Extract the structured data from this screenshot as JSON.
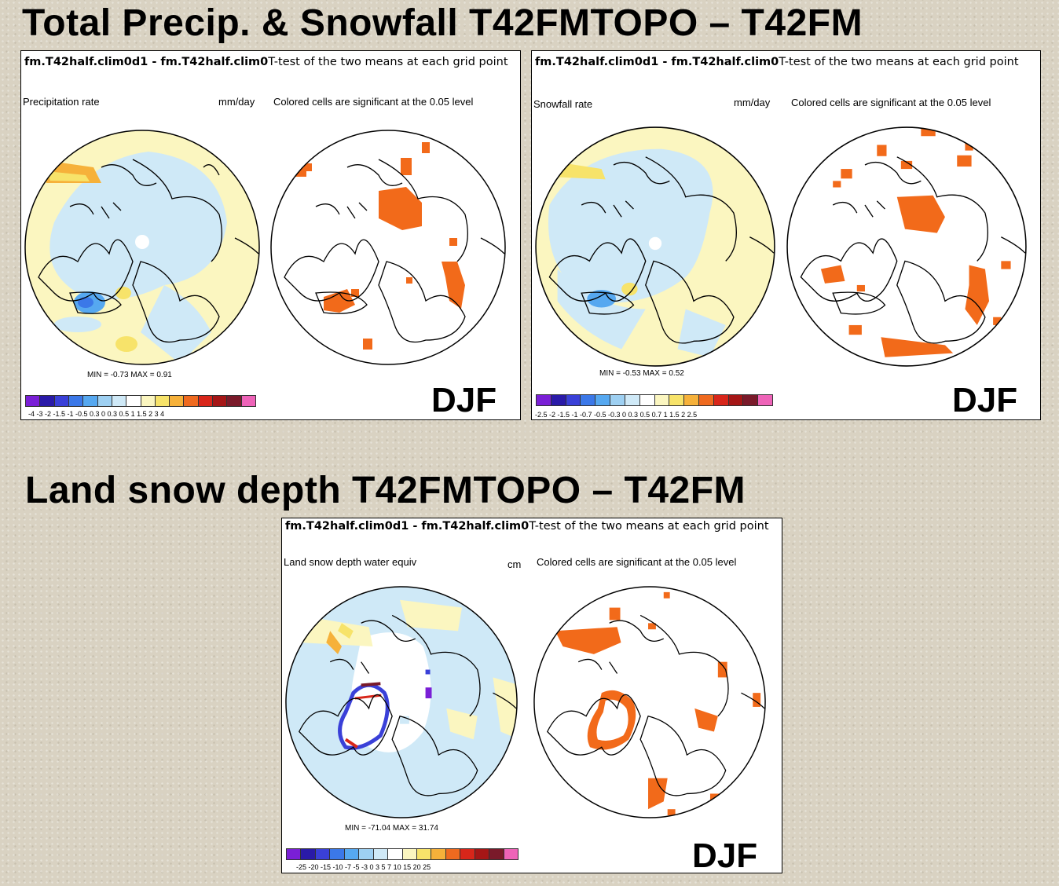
{
  "titles": {
    "top": "Total Precip. & Snowfall T42FMTOPO – T42FM",
    "bottom": "Land snow depth T42FMTOPO – T42FM"
  },
  "panels": [
    {
      "id": "precip",
      "title_left": "fm.T42half.clim0d1 - fm.T42half.clim0",
      "title_right": "T-test of the two means at each grid point",
      "variable": "Precipitation rate",
      "units": "mm/day",
      "significance": "Colored cells are significant at the 0.05 level",
      "minmax": "MIN = -0.73 MAX = 0.91",
      "season": "DJF",
      "ticks": "-4  -3  -2 -1.5 -1 -0.5 0.3  0  0.3 0.5  1  1.5  2   3   4"
    },
    {
      "id": "snowfall",
      "title_left": "fm.T42half.clim0d1 - fm.T42half.clim0",
      "title_right": "T-test of the two means at each grid point",
      "variable": "Snowfall rate",
      "units": "mm/day",
      "significance": "Colored cells are significant at the 0.05 level",
      "minmax": "MIN = -0.53 MAX = 0.52",
      "season": "DJF",
      "ticks": "-2.5 -2 -1.5 -1 -0.7 -0.5 -0.3  0  0.3 0.5 0.7  1  1.5  2  2.5"
    },
    {
      "id": "snowdepth",
      "title_left": "fm.T42half.clim0d1 - fm.T42half.clim0",
      "title_right": "T-test of the two means at each grid point",
      "variable": "Land snow depth water equiv",
      "units": "cm",
      "significance": "Colored cells are significant at the 0.05 level",
      "minmax": "MIN = -71.04 MAX = 31.74",
      "season": "DJF",
      "ticks": "-25 -20 -15 -10 -7  -5  -3   0   3   5   7  10  15  20  25"
    }
  ],
  "colorbar_colors": [
    "#7a1fd6",
    "#2a1aa8",
    "#3a40d8",
    "#3b78e8",
    "#56a8f0",
    "#9ed0f2",
    "#cfe9f7",
    "#ffffff",
    "#fbf6c0",
    "#f7e36a",
    "#f6b13a",
    "#ef6a1f",
    "#d8261a",
    "#a51616",
    "#7a1a2a",
    "#ee63b8"
  ],
  "map_colors": {
    "light_blue": "#cfe9f7",
    "mid_blue": "#9ed0f2",
    "blue": "#56a8f0",
    "light_yellow": "#fbf6c0",
    "yellow": "#f7e36a",
    "orange": "#f6b13a",
    "significant": "#f26a1a"
  }
}
